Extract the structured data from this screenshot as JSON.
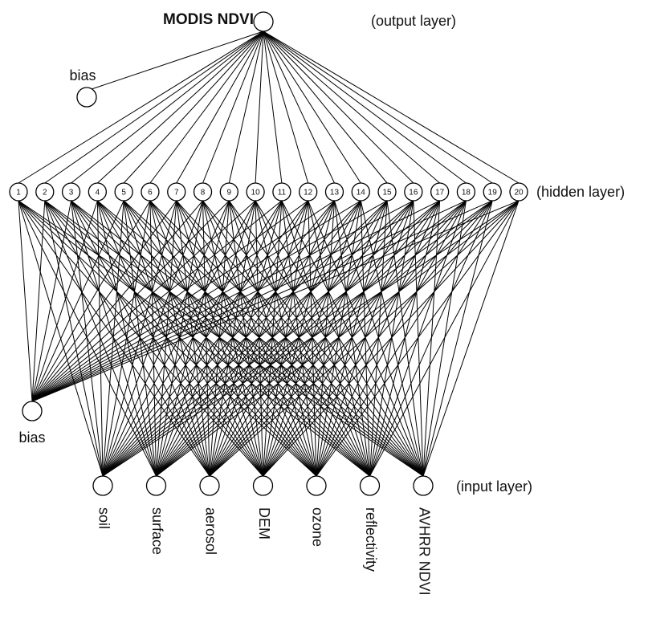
{
  "output": {
    "label": "MODIS NDVI",
    "layer_label": "(output layer)"
  },
  "bias_top": {
    "label": "bias"
  },
  "hidden": {
    "layer_label": "(hidden layer)",
    "nodes": [
      "1",
      "2",
      "3",
      "4",
      "5",
      "6",
      "7",
      "8",
      "9",
      "10",
      "11",
      "12",
      "13",
      "14",
      "15",
      "16",
      "17",
      "18",
      "19",
      "20"
    ]
  },
  "bias_bottom": {
    "label": "bias"
  },
  "input": {
    "layer_label": "(input layer)",
    "nodes": [
      "soil",
      "surface",
      "aerosol",
      "DEM",
      "ozone",
      "reflectivity",
      "AVHRR NDVI"
    ]
  }
}
